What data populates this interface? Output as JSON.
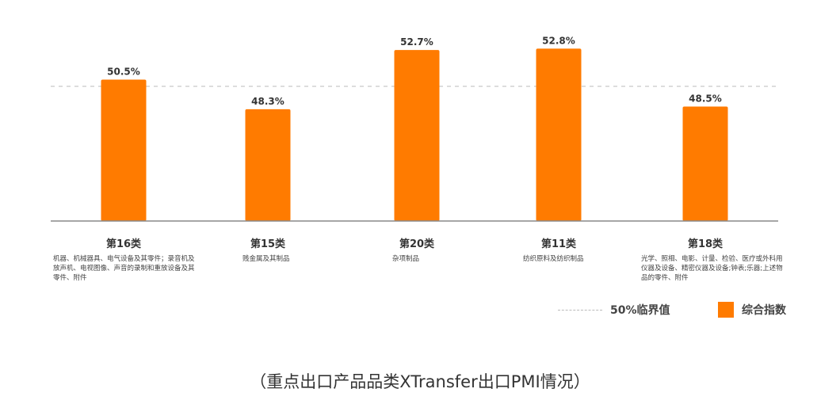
{
  "chart_data": {
    "type": "bar",
    "categories": [
      "第16类",
      "第15类",
      "第20类",
      "第11类",
      "第18类"
    ],
    "category_descriptions": [
      "机器、机械器具、电气设备及其零件；录音机及放声机、电视图像、声音的录制和重放设备及其零件、附件",
      "贱金属及其制品",
      "杂项制品",
      "纺织原料及纺织制品",
      "光学、照相、电影、计量、检验、医疗或外科用仪器及设备、精密仪器及设备;钟表;乐器;上述物品的零件、附件"
    ],
    "series": [
      {
        "name": "综合指数",
        "values": [
          50.5,
          48.3,
          52.7,
          52.8,
          48.5
        ]
      }
    ],
    "value_labels": [
      "50.5%",
      "48.3%",
      "52.7%",
      "52.8%",
      "48.5%"
    ],
    "reference_line": {
      "value": 50,
      "label": "50%临界值"
    },
    "ylim": [
      40,
      53
    ],
    "colors": {
      "bar": "#ff7b00",
      "reference": "#bbbbbb",
      "axis": "#888888"
    },
    "legend_position": "bottom-right",
    "grid": false
  },
  "caption": "（重点出口产品品类XTransfer出口PMI情况）"
}
